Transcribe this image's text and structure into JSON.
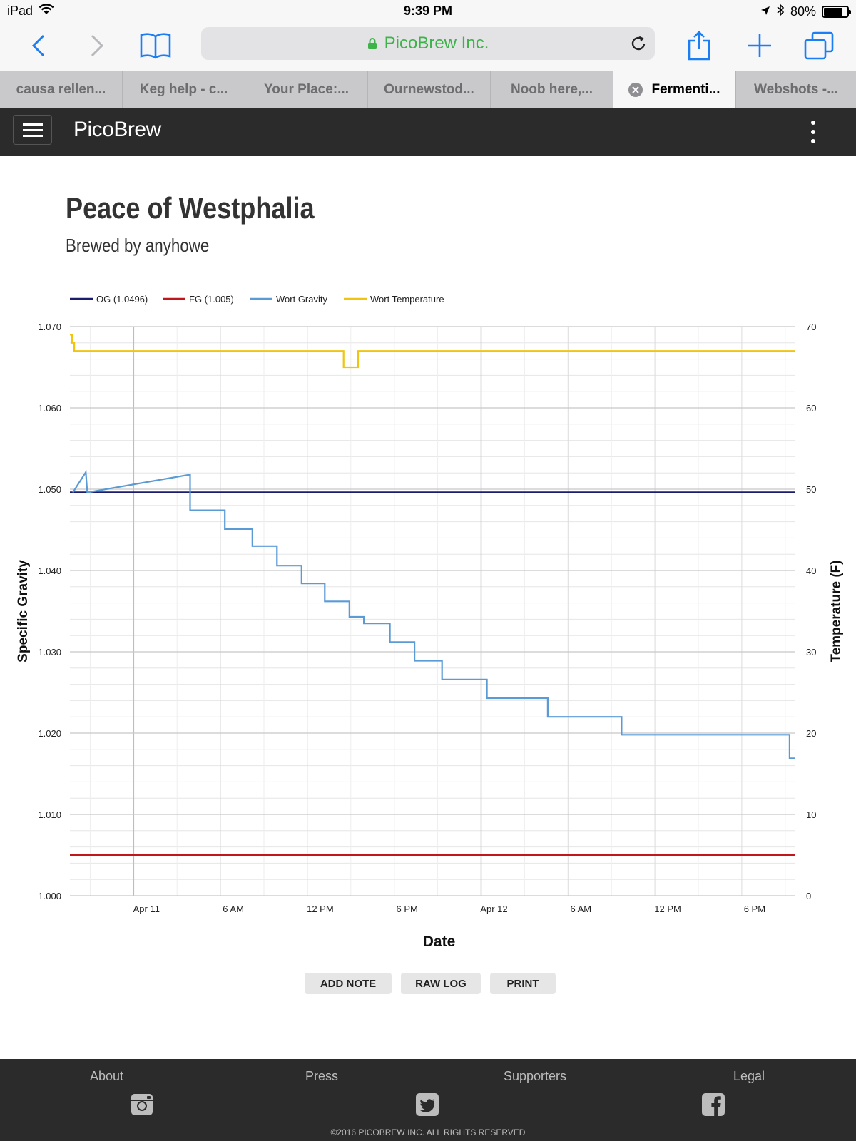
{
  "status_bar": {
    "device": "iPad",
    "time": "9:39 PM",
    "battery_percent": "80%",
    "battery_level": 0.8
  },
  "browser": {
    "address": "PicoBrew Inc.",
    "tabs": [
      {
        "label": "causa rellen..."
      },
      {
        "label": "Keg help - c..."
      },
      {
        "label": "Your Place:..."
      },
      {
        "label": "Ournewstod..."
      },
      {
        "label": "Noob here,..."
      },
      {
        "label": "Fermenti..."
      },
      {
        "label": "Webshots -..."
      }
    ],
    "active_tab_index": 5
  },
  "app": {
    "brand": "PicoBrew"
  },
  "page": {
    "title": "Peace of Westphalia",
    "subtitle": "Brewed by anyhowe"
  },
  "chart_data": {
    "type": "line",
    "legend": [
      {
        "name": "OG (1.0496)",
        "color": "#1c1c6e"
      },
      {
        "name": "FG (1.005)",
        "color": "#c0171c"
      },
      {
        "name": "Wort Gravity",
        "color": "#5b9bd5"
      },
      {
        "name": "Wort Temperature",
        "color": "#f1c40f"
      }
    ],
    "legend_position": "top-left",
    "xlabel": "Date",
    "ylabel": "Specific Gravity",
    "ylabel_right": "Temperature (F)",
    "ylim": [
      1.0,
      1.07
    ],
    "ylim_right": [
      0,
      70
    ],
    "y_ticks": [
      "1.070",
      "1.060",
      "1.050",
      "1.040",
      "1.030",
      "1.020",
      "1.010",
      "1.000"
    ],
    "y_ticks_right": [
      "70",
      "60",
      "50",
      "40",
      "30",
      "20",
      "10",
      "0"
    ],
    "xlim_hours": [
      -4.4,
      45.7
    ],
    "x_ticks": [
      {
        "label": "Apr 11",
        "hour": 0
      },
      {
        "label": "6 AM",
        "hour": 6
      },
      {
        "label": "12 PM",
        "hour": 12
      },
      {
        "label": "6 PM",
        "hour": 18
      },
      {
        "label": "Apr 12",
        "hour": 24
      },
      {
        "label": "6 AM",
        "hour": 30
      },
      {
        "label": "12 PM",
        "hour": 36
      },
      {
        "label": "6 PM",
        "hour": 42
      }
    ],
    "grid": true,
    "og": 1.0496,
    "fg": 1.005,
    "series": [
      {
        "name": "Wort Gravity",
        "axis": "left",
        "points": [
          [
            -4.2,
            1.0496
          ],
          [
            -3.3,
            1.0521
          ],
          [
            -3.2,
            1.0496
          ],
          [
            3.9,
            1.0518
          ],
          [
            3.9,
            1.0474
          ],
          [
            6.3,
            1.0474
          ],
          [
            6.3,
            1.0451
          ],
          [
            8.2,
            1.0451
          ],
          [
            8.2,
            1.043
          ],
          [
            9.9,
            1.043
          ],
          [
            9.9,
            1.0406
          ],
          [
            11.6,
            1.0406
          ],
          [
            11.6,
            1.0384
          ],
          [
            13.2,
            1.0384
          ],
          [
            13.2,
            1.0362
          ],
          [
            14.9,
            1.0362
          ],
          [
            14.9,
            1.0343
          ],
          [
            15.9,
            1.0343
          ],
          [
            15.9,
            1.0335
          ],
          [
            17.7,
            1.0335
          ],
          [
            17.7,
            1.0312
          ],
          [
            19.4,
            1.0312
          ],
          [
            19.4,
            1.0289
          ],
          [
            21.3,
            1.0289
          ],
          [
            21.3,
            1.0266
          ],
          [
            24.4,
            1.0266
          ],
          [
            24.4,
            1.0243
          ],
          [
            28.6,
            1.0243
          ],
          [
            28.6,
            1.022
          ],
          [
            33.7,
            1.022
          ],
          [
            33.7,
            1.0198
          ],
          [
            45.3,
            1.0198
          ],
          [
            45.3,
            1.0169
          ],
          [
            45.7,
            1.0169
          ]
        ]
      },
      {
        "name": "Wort Temperature",
        "axis": "right",
        "points": [
          [
            -4.4,
            69
          ],
          [
            -4.25,
            69
          ],
          [
            -4.25,
            68
          ],
          [
            -4.1,
            68
          ],
          [
            -4.1,
            67
          ],
          [
            14.5,
            67
          ],
          [
            14.5,
            65
          ],
          [
            15.5,
            65
          ],
          [
            15.5,
            67
          ],
          [
            45.7,
            67
          ]
        ]
      }
    ]
  },
  "actions": {
    "add_note": "ADD NOTE",
    "raw_log": "RAW LOG",
    "print": "PRINT"
  },
  "footer": {
    "links": [
      "About",
      "Press",
      "Supporters",
      "Legal"
    ],
    "icons": [
      "instagram-icon",
      "twitter-icon",
      "facebook-icon"
    ],
    "copyright": "©2016 PICOBREW INC. ALL RIGHTS RESERVED"
  }
}
